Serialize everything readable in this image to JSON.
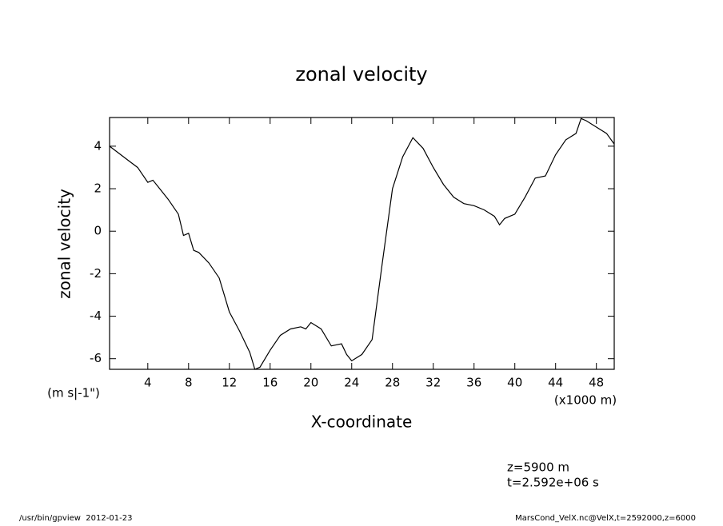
{
  "chart_data": {
    "type": "line",
    "title": "zonal velocity",
    "y_label": "zonal velocity",
    "y_units": "(m s|-1\")",
    "x_label": "X-coordinate",
    "x_units": "(x1000 m)",
    "annotations": [
      "z=5900 m",
      "t=2.592e+06 s"
    ],
    "footer_left": "/usr/bin/gpview  2012-01-23",
    "footer_right": "MarsCond_VelX.nc@VelX,t=2592000,z=6000",
    "color": "#000000",
    "xlim": [
      0.25,
      49.75
    ],
    "ylim": [
      -6.5,
      5.35
    ],
    "xticks": [
      4,
      8,
      12,
      16,
      20,
      24,
      28,
      32,
      36,
      40,
      44,
      48
    ],
    "yticks": [
      -6,
      -4,
      -2,
      0,
      2,
      4
    ],
    "x": [
      0.25,
      2,
      3,
      4,
      4.5,
      5,
      6,
      7,
      7.5,
      8,
      8.5,
      9,
      10,
      11,
      11.5,
      12,
      13,
      14,
      14.5,
      15,
      16,
      17,
      18,
      19,
      19.5,
      20,
      21,
      22,
      23,
      23.5,
      24,
      25,
      26,
      27,
      28,
      29,
      30,
      31,
      32,
      33,
      34,
      35,
      36,
      37,
      38,
      38.5,
      39,
      40,
      41,
      42,
      43,
      44,
      45,
      46,
      46.5,
      47,
      48,
      49,
      49.75
    ],
    "values": [
      4.0,
      3.36,
      3.0,
      2.3,
      2.4,
      2.1,
      1.5,
      0.8,
      -0.2,
      -0.1,
      -0.9,
      -1.0,
      -1.5,
      -2.2,
      -3.0,
      -3.8,
      -4.7,
      -5.7,
      -6.5,
      -6.4,
      -5.6,
      -4.9,
      -4.6,
      -4.5,
      -4.6,
      -4.3,
      -4.6,
      -5.4,
      -5.3,
      -5.8,
      -6.1,
      -5.8,
      -5.1,
      -1.5,
      2.0,
      3.5,
      4.4,
      3.9,
      3.0,
      2.2,
      1.6,
      1.3,
      1.2,
      1.0,
      0.7,
      0.3,
      0.6,
      0.8,
      1.6,
      2.5,
      2.6,
      3.6,
      4.3,
      4.6,
      5.3,
      5.2,
      4.9,
      4.6,
      4.1
    ]
  }
}
